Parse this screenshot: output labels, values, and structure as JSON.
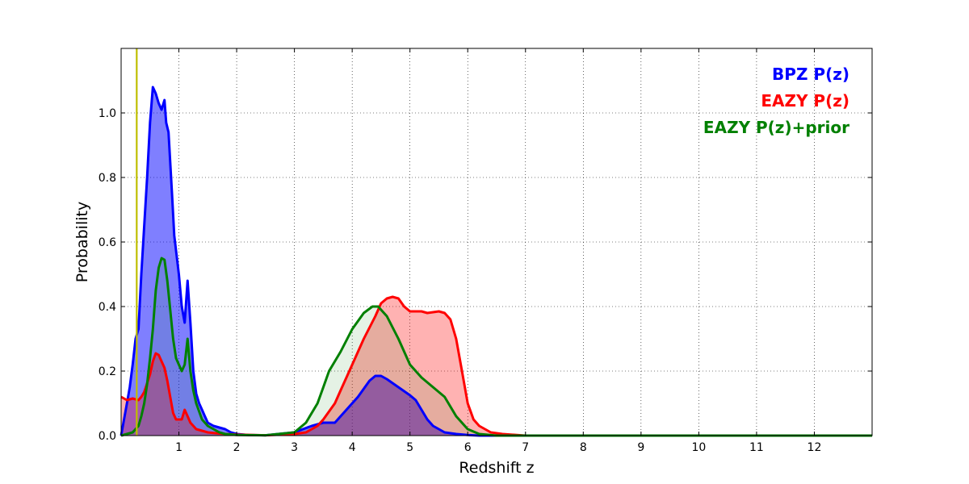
{
  "chart_data": {
    "type": "area",
    "xlabel": "Redshift z",
    "ylabel": "Probability",
    "xlim": [
      0,
      13
    ],
    "ylim": [
      0,
      1.2
    ],
    "xticks": [
      1,
      2,
      3,
      4,
      5,
      6,
      7,
      8,
      9,
      10,
      11,
      12
    ],
    "yticks": [
      0.0,
      0.2,
      0.4,
      0.6,
      0.8,
      1.0
    ],
    "grid": true,
    "legend_position": "top-right",
    "reference_line": {
      "x": 0.27,
      "color": "#bfbf00"
    },
    "series": [
      {
        "name": "BPZ P(z)",
        "color": "#0000ff",
        "fill": "#0000ff",
        "fill_opacity": 0.5,
        "x": [
          0,
          0.1,
          0.15,
          0.2,
          0.25,
          0.3,
          0.35,
          0.4,
          0.45,
          0.5,
          0.55,
          0.6,
          0.65,
          0.7,
          0.75,
          0.78,
          0.82,
          0.88,
          0.92,
          1.0,
          1.05,
          1.1,
          1.15,
          1.2,
          1.25,
          1.3,
          1.35,
          1.4,
          1.45,
          1.5,
          1.6,
          1.7,
          1.8,
          1.9,
          2.0,
          2.2,
          2.5,
          3.0,
          3.3,
          3.5,
          3.7,
          3.9,
          4.1,
          4.3,
          4.4,
          4.5,
          4.6,
          4.8,
          5.0,
          5.1,
          5.2,
          5.3,
          5.4,
          5.5,
          5.6,
          5.8,
          6.0,
          6.2,
          7.0,
          13.0
        ],
        "y": [
          0.0,
          0.1,
          0.15,
          0.22,
          0.3,
          0.33,
          0.5,
          0.65,
          0.8,
          0.97,
          1.08,
          1.06,
          1.03,
          1.01,
          1.04,
          0.97,
          0.94,
          0.75,
          0.62,
          0.5,
          0.4,
          0.35,
          0.48,
          0.35,
          0.2,
          0.13,
          0.1,
          0.08,
          0.06,
          0.04,
          0.03,
          0.025,
          0.02,
          0.01,
          0.005,
          0.002,
          0.001,
          0.01,
          0.03,
          0.04,
          0.04,
          0.08,
          0.12,
          0.17,
          0.185,
          0.185,
          0.175,
          0.15,
          0.125,
          0.11,
          0.08,
          0.05,
          0.03,
          0.02,
          0.01,
          0.005,
          0.002,
          0.0,
          0.0,
          0.0
        ]
      },
      {
        "name": "EAZY P(z)",
        "color": "#ff0000",
        "fill": "#ff0000",
        "fill_opacity": 0.3,
        "x": [
          0,
          0.1,
          0.2,
          0.3,
          0.35,
          0.4,
          0.5,
          0.55,
          0.6,
          0.65,
          0.7,
          0.75,
          0.8,
          0.85,
          0.9,
          0.95,
          1.0,
          1.05,
          1.1,
          1.15,
          1.2,
          1.25,
          1.3,
          1.4,
          1.5,
          1.6,
          1.8,
          2.0,
          2.5,
          3.0,
          3.2,
          3.4,
          3.5,
          3.7,
          3.8,
          4.0,
          4.2,
          4.4,
          4.5,
          4.6,
          4.7,
          4.8,
          4.9,
          5.0,
          5.2,
          5.3,
          5.5,
          5.6,
          5.7,
          5.8,
          5.9,
          6.0,
          6.1,
          6.2,
          6.4,
          6.6,
          7.0,
          13.0
        ],
        "y": [
          0.12,
          0.11,
          0.115,
          0.11,
          0.12,
          0.135,
          0.19,
          0.23,
          0.255,
          0.25,
          0.23,
          0.21,
          0.17,
          0.12,
          0.07,
          0.05,
          0.05,
          0.05,
          0.08,
          0.06,
          0.04,
          0.03,
          0.02,
          0.015,
          0.01,
          0.008,
          0.005,
          0.003,
          0.001,
          0.005,
          0.01,
          0.03,
          0.05,
          0.1,
          0.14,
          0.22,
          0.3,
          0.37,
          0.41,
          0.425,
          0.43,
          0.425,
          0.4,
          0.385,
          0.385,
          0.38,
          0.385,
          0.38,
          0.36,
          0.3,
          0.2,
          0.1,
          0.05,
          0.03,
          0.01,
          0.005,
          0.0,
          0.0
        ]
      },
      {
        "name": "EAZY P(z)+prior",
        "color": "#008000",
        "fill": "#008000",
        "fill_opacity": 0.1,
        "x": [
          0,
          0.1,
          0.2,
          0.3,
          0.35,
          0.4,
          0.45,
          0.5,
          0.55,
          0.6,
          0.65,
          0.7,
          0.75,
          0.8,
          0.85,
          0.9,
          0.95,
          1.0,
          1.05,
          1.1,
          1.15,
          1.2,
          1.25,
          1.3,
          1.4,
          1.5,
          1.6,
          1.7,
          1.8,
          2.0,
          2.5,
          3.0,
          3.2,
          3.4,
          3.5,
          3.6,
          3.8,
          4.0,
          4.2,
          4.35,
          4.45,
          4.6,
          4.8,
          5.0,
          5.2,
          5.4,
          5.6,
          5.8,
          6.0,
          6.2,
          6.5,
          7.0,
          13.0
        ],
        "y": [
          0.0,
          0.005,
          0.01,
          0.03,
          0.06,
          0.1,
          0.16,
          0.24,
          0.33,
          0.45,
          0.52,
          0.55,
          0.545,
          0.48,
          0.39,
          0.3,
          0.24,
          0.22,
          0.2,
          0.22,
          0.3,
          0.2,
          0.14,
          0.1,
          0.05,
          0.03,
          0.02,
          0.01,
          0.005,
          0.002,
          0.001,
          0.01,
          0.04,
          0.1,
          0.15,
          0.2,
          0.26,
          0.33,
          0.38,
          0.4,
          0.4,
          0.37,
          0.3,
          0.22,
          0.18,
          0.15,
          0.12,
          0.06,
          0.02,
          0.005,
          0.0,
          0.0,
          0.0
        ]
      }
    ]
  }
}
